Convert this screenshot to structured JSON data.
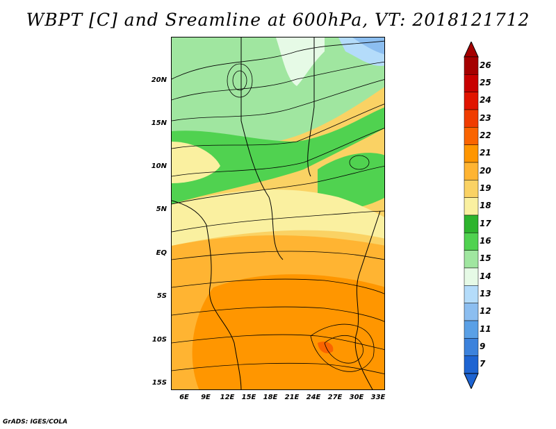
{
  "title": "WBPT [C] and Sreamline at 600hPa, VT: 2018121712",
  "footer": "GrADS: IGES/COLA",
  "lat_labels": [
    "20N",
    "15N",
    "10N",
    "5N",
    "EQ",
    "5S",
    "10S",
    "15S"
  ],
  "lon_labels": [
    "6E",
    "9E",
    "12E",
    "15E",
    "18E",
    "21E",
    "24E",
    "27E",
    "30E",
    "33E"
  ],
  "colorbar": {
    "labels": [
      "26",
      "25",
      "24",
      "23",
      "22",
      "21",
      "20",
      "19",
      "18",
      "17",
      "16",
      "15",
      "14",
      "13",
      "12",
      "11",
      "9",
      "7"
    ],
    "colors": [
      "#a50000",
      "#c80000",
      "#e11400",
      "#f03c00",
      "#fa6400",
      "#ff9600",
      "#ffb432",
      "#fad264",
      "#faf0a0",
      "#2db42d",
      "#50d250",
      "#a0e6a0",
      "#e6fae6",
      "#b4dcfa",
      "#8cbef0",
      "#5aa0e6",
      "#3c82dc",
      "#1e64d2"
    ],
    "top_arrow_color": "#a50000",
    "bottom_arrow_color": "#1e64d2"
  }
}
